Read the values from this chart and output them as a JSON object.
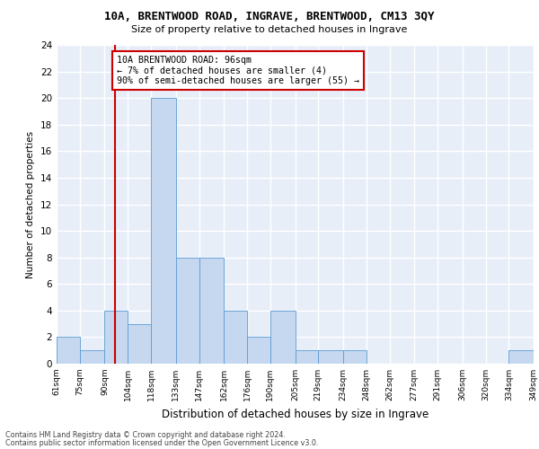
{
  "title_line1": "10A, BRENTWOOD ROAD, INGRAVE, BRENTWOOD, CM13 3QY",
  "title_line2": "Size of property relative to detached houses in Ingrave",
  "xlabel": "Distribution of detached houses by size in Ingrave",
  "ylabel": "Number of detached properties",
  "bar_edges": [
    61,
    75,
    90,
    104,
    118,
    133,
    147,
    162,
    176,
    190,
    205,
    219,
    234,
    248,
    262,
    277,
    291,
    306,
    320,
    334,
    349
  ],
  "bar_labels": [
    "61sqm",
    "75sqm",
    "90sqm",
    "104sqm",
    "118sqm",
    "133sqm",
    "147sqm",
    "162sqm",
    "176sqm",
    "190sqm",
    "205sqm",
    "219sqm",
    "234sqm",
    "248sqm",
    "262sqm",
    "277sqm",
    "291sqm",
    "306sqm",
    "320sqm",
    "334sqm",
    "349sqm"
  ],
  "bar_heights": [
    2,
    1,
    4,
    3,
    20,
    8,
    8,
    4,
    2,
    4,
    1,
    1,
    1,
    0,
    0,
    0,
    0,
    0,
    0,
    1
  ],
  "bar_color": "#c5d8f0",
  "bar_edgecolor": "#5b9bd5",
  "property_size": 96,
  "red_line_color": "#cc0000",
  "annotation_text": "10A BRENTWOOD ROAD: 96sqm\n← 7% of detached houses are smaller (4)\n90% of semi-detached houses are larger (55) →",
  "annotation_box_edgecolor": "#cc0000",
  "ylim": [
    0,
    24
  ],
  "yticks": [
    0,
    2,
    4,
    6,
    8,
    10,
    12,
    14,
    16,
    18,
    20,
    22,
    24
  ],
  "background_color": "#e8eef8",
  "grid_color": "#ffffff",
  "footer_line1": "Contains HM Land Registry data © Crown copyright and database right 2024.",
  "footer_line2": "Contains public sector information licensed under the Open Government Licence v3.0."
}
